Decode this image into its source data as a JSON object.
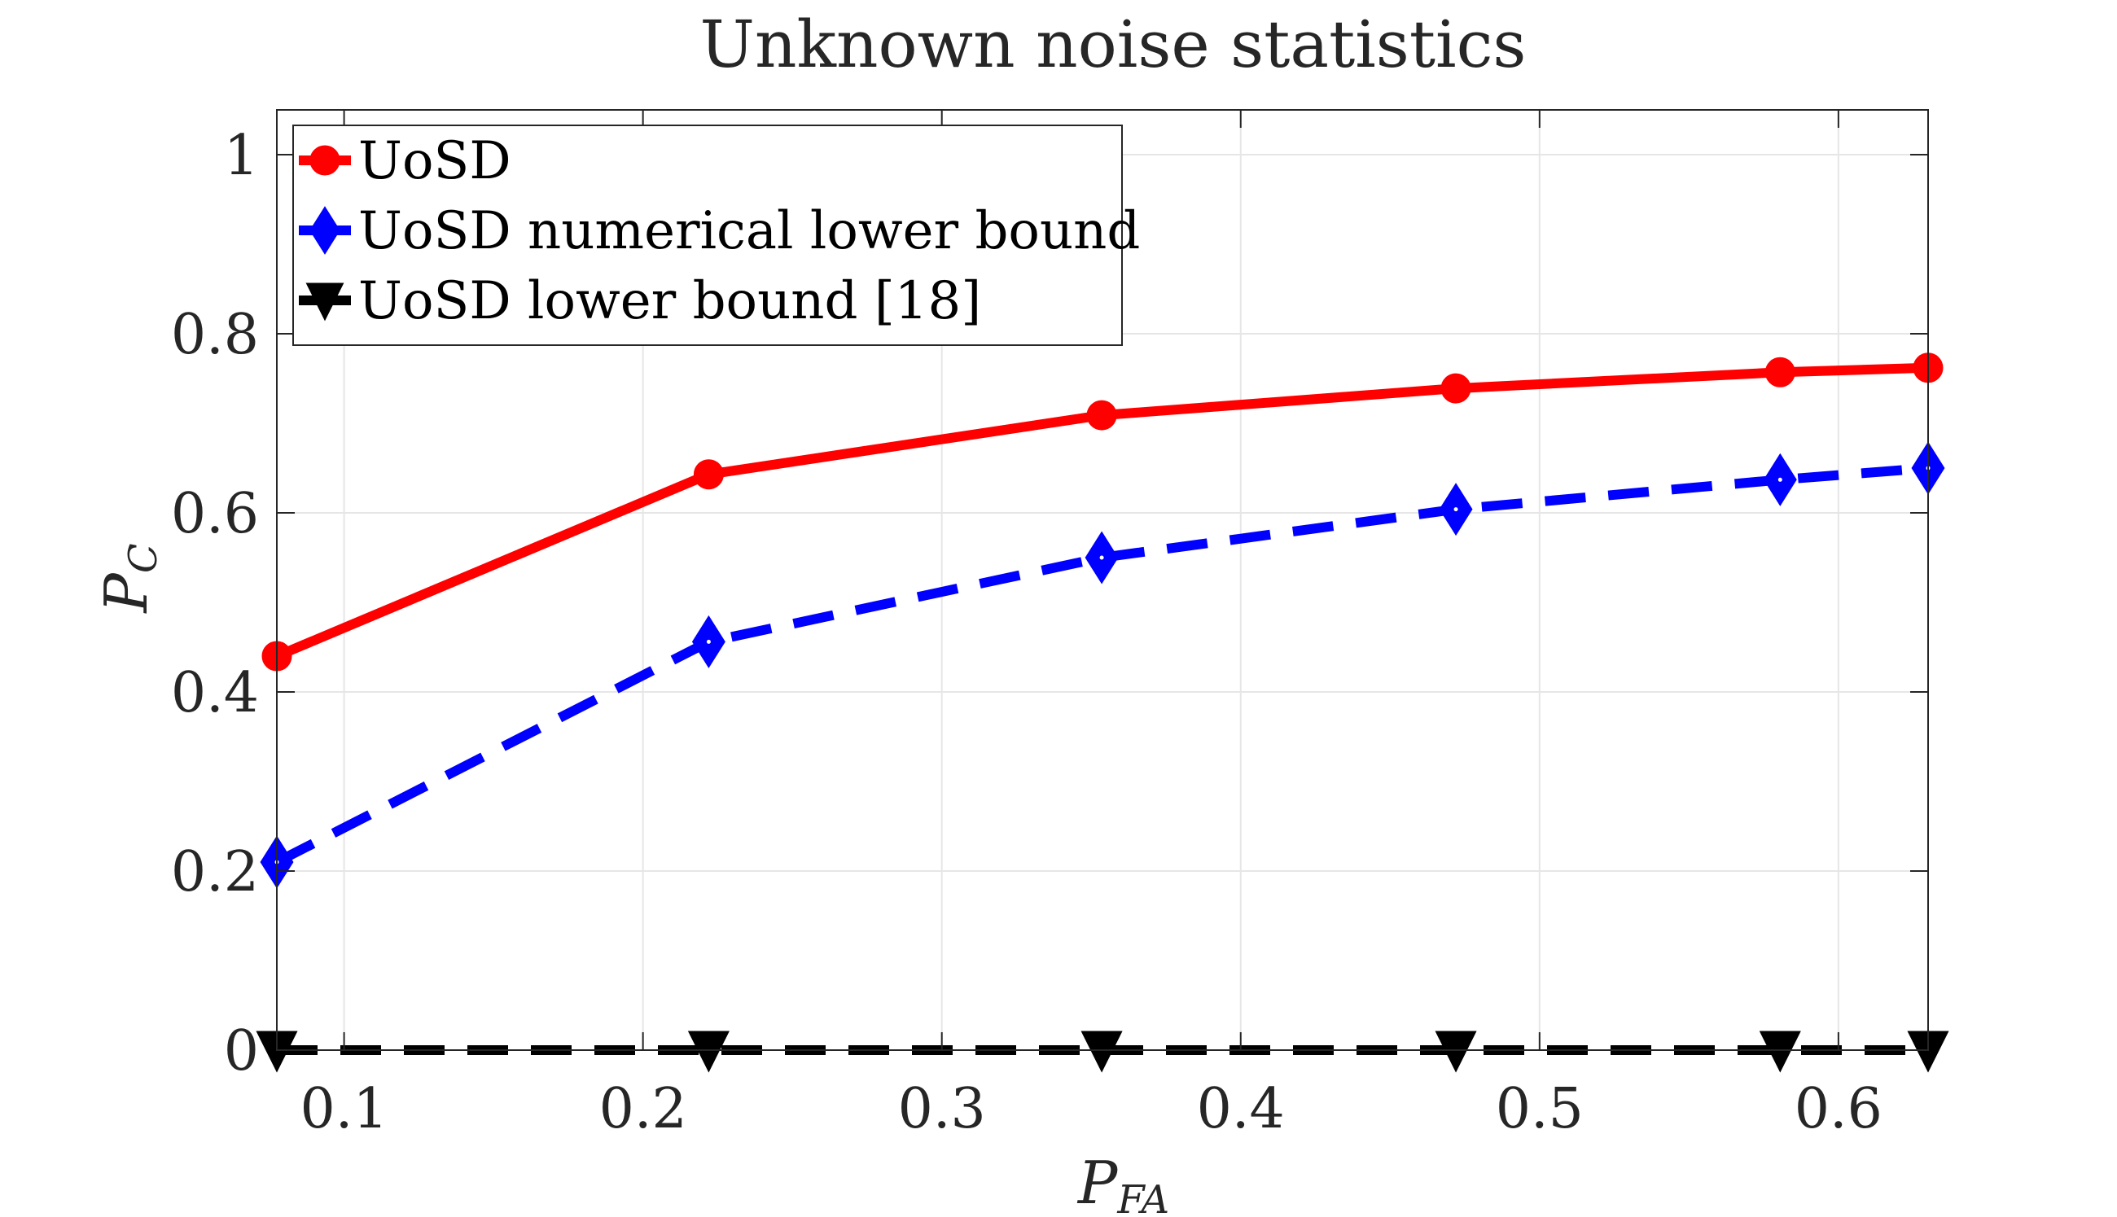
{
  "chart_data": {
    "type": "line",
    "title": "Unknown noise statistics",
    "xlabel": {
      "main": "P",
      "sub": "FA"
    },
    "ylabel": {
      "main": "P",
      "sub": "C"
    },
    "xlim": [
      0.0775,
      0.63
    ],
    "ylim": [
      0,
      1.05
    ],
    "xticks": [
      0.1,
      0.2,
      0.3,
      0.4,
      0.5,
      0.6
    ],
    "xtick_labels": [
      "0.1",
      "0.2",
      "0.3",
      "0.4",
      "0.5",
      "0.6"
    ],
    "yticks": [
      0,
      0.2,
      0.4,
      0.6,
      0.8,
      1
    ],
    "ytick_labels": [
      "0",
      "0.2",
      "0.4",
      "0.6",
      "0.8",
      "1"
    ],
    "grid": true,
    "legend_position": "top-left",
    "x": [
      0.0775,
      0.222,
      0.3535,
      0.472,
      0.5805,
      0.63
    ],
    "series": [
      {
        "name": "UoSD",
        "color": "#ff0000",
        "marker": "circle",
        "linestyle": "solid",
        "values": [
          0.44,
          0.643,
          0.709,
          0.739,
          0.757,
          0.762
        ]
      },
      {
        "name": "UoSD numerical lower bound",
        "color": "#0000ff",
        "marker": "diamond",
        "linestyle": "dashed",
        "values": [
          0.21,
          0.456,
          0.55,
          0.604,
          0.637,
          0.65
        ]
      },
      {
        "name": "UoSD lower bound [18]",
        "color": "#000000",
        "marker": "triangle-down",
        "linestyle": "dashed",
        "values": [
          0,
          0,
          0,
          0,
          0,
          0
        ]
      }
    ]
  }
}
